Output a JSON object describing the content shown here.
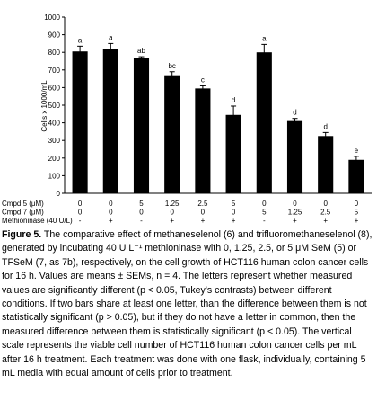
{
  "chart_data": {
    "type": "bar",
    "y_label": "Cells x 1000/mL",
    "ylim": [
      0,
      1000
    ],
    "yticks": [
      0,
      100,
      200,
      300,
      400,
      500,
      600,
      700,
      800,
      900,
      1000
    ],
    "values": [
      805,
      820,
      770,
      670,
      595,
      445,
      800,
      410,
      325,
      190
    ],
    "errors": [
      30,
      30,
      5,
      20,
      15,
      50,
      45,
      15,
      20,
      20
    ],
    "value_labels": [
      "a",
      "a",
      "ab",
      "bc",
      "c",
      "d",
      "a",
      "d",
      "d",
      "e"
    ],
    "color": "#000000",
    "conditions": [
      {
        "name": "Cmpd 5 (μM)",
        "values": [
          "0",
          "0",
          "5",
          "1.25",
          "2.5",
          "5",
          "0",
          "0",
          "0",
          "0"
        ]
      },
      {
        "name": "Cmpd 7 (μM)",
        "values": [
          "0",
          "0",
          "0",
          "0",
          "0",
          "0",
          "5",
          "1.25",
          "2.5",
          "5"
        ]
      },
      {
        "name": "Methioninase (40 U/L)",
        "values": [
          "-",
          "+",
          "-",
          "+",
          "+",
          "+",
          "-",
          "+",
          "+",
          "+"
        ]
      }
    ]
  },
  "caption": {
    "label": "Figure 5.",
    "text": "The comparative effect of methaneselenol (6) and trifluoromethaneselenol (8), generated by incubating 40 U L⁻¹ methioninase with 0, 1.25, 2.5, or 5 μM SeM (5) or TFSeM (7, as 7b), respectively, on the cell growth of HCT116 human colon cancer cells for 16 h. Values are means ± SEMs, n = 4. The letters represent whether measured values are significantly different (p < 0.05, Tukey's contrasts) between different conditions. If two bars share at least one letter, than the difference between them is not statistically significant (p > 0.05), but if they do not have a letter in common, then the measured difference between them is statistically significant (p < 0.05). The vertical scale represents the viable cell number of HCT116 human colon cancer cells per mL after 16 h treatment. Each treatment was done with one flask, individually, containing 5 mL media with equal amount of cells prior to treatment."
  }
}
